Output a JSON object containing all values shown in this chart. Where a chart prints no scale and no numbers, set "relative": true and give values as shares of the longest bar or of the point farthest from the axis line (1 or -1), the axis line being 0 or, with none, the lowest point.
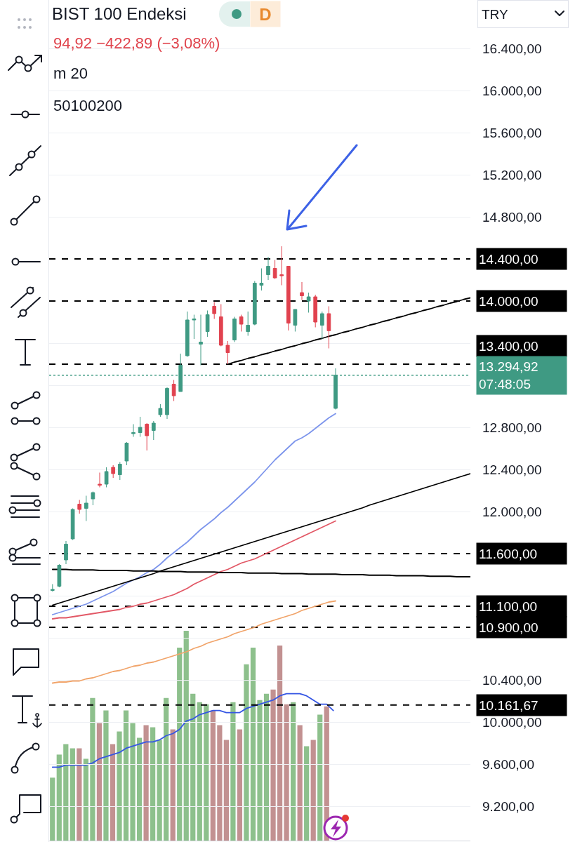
{
  "chart_data": [
    {
      "type": "candlestick",
      "title": "BIST 100 Endeksi",
      "subtitle": "94,92 −422,89 (−3,08%)",
      "annotations": [
        "D",
        "m 20",
        "50100200",
        "TRY"
      ],
      "categories": [
        null,
        null,
        null,
        null,
        null,
        null,
        null,
        null,
        null,
        null,
        null,
        null,
        null,
        null,
        null,
        null,
        null,
        null,
        null,
        null,
        null,
        null,
        null,
        null,
        null,
        null,
        null,
        null,
        null,
        null,
        null,
        null,
        null,
        null,
        null,
        null,
        null,
        null,
        null,
        null,
        null,
        null,
        null,
        null,
        null,
        null,
        null,
        null,
        null,
        null,
        null,
        null,
        null,
        null,
        null,
        null,
        null,
        null,
        null,
        null,
        null,
        null,
        null
      ],
      "ohlc": [
        [
          11250,
          11310,
          11240,
          11260
        ],
        [
          11290,
          11500,
          11280,
          11490
        ],
        [
          11540,
          11720,
          11500,
          11690
        ],
        [
          11740,
          12030,
          11730,
          12020
        ],
        [
          12070,
          12110,
          11980,
          12020
        ],
        [
          12030,
          12150,
          11910,
          12080
        ],
        [
          12120,
          12190,
          12060,
          12180
        ],
        [
          12260,
          12370,
          12230,
          12250
        ],
        [
          12260,
          12420,
          12230,
          12380
        ],
        [
          12420,
          12440,
          12320,
          12360
        ],
        [
          12350,
          12470,
          12300,
          12450
        ],
        [
          12480,
          12660,
          12440,
          12650
        ],
        [
          12740,
          12830,
          12710,
          12750
        ],
        [
          12750,
          12900,
          12710,
          12800
        ],
        [
          12830,
          12840,
          12580,
          12720
        ],
        [
          12770,
          12860,
          12680,
          12840
        ],
        [
          12920,
          13020,
          12900,
          12980
        ],
        [
          12920,
          13180,
          12880,
          13170
        ],
        [
          13210,
          13250,
          13050,
          13100
        ],
        [
          13140,
          13500,
          13140,
          13390
        ],
        [
          13480,
          13900,
          13470,
          13820
        ],
        [
          13820,
          13870,
          13640,
          13830
        ],
        [
          13590,
          13870,
          13390,
          13610
        ],
        [
          13710,
          13910,
          13660,
          13870
        ],
        [
          13950,
          13990,
          13830,
          13880
        ],
        [
          13850,
          13970,
          13570,
          13580
        ],
        [
          13580,
          13620,
          13400,
          13510
        ],
        [
          13630,
          13850,
          13610,
          13830
        ],
        [
          13850,
          13870,
          13710,
          13780
        ],
        [
          13710,
          13900,
          13670,
          13770
        ],
        [
          13780,
          14190,
          13770,
          14170
        ],
        [
          14150,
          14310,
          14100,
          14170
        ],
        [
          14250,
          14420,
          14200,
          14330
        ],
        [
          14310,
          14390,
          14210,
          14220
        ],
        [
          14250,
          14520,
          14150,
          14240
        ],
        [
          14330,
          14330,
          13720,
          13790
        ],
        [
          13770,
          13920,
          13710,
          13920
        ],
        [
          14080,
          14180,
          14010,
          14050
        ],
        [
          14000,
          14080,
          13890,
          14040
        ],
        [
          14040,
          14060,
          13750,
          13800
        ],
        [
          13770,
          13900,
          13640,
          13880
        ],
        [
          13880,
          13950,
          13550,
          13717.81
        ],
        [
          12980,
          13360,
          12970,
          13294.92
        ],
        null,
        null,
        null,
        null,
        null,
        null,
        null,
        null,
        null,
        null,
        null,
        null,
        null,
        null,
        null,
        null,
        null,
        null,
        null,
        null
      ],
      "colors": [
        "#3f9a83",
        "#3f9a83",
        "#3f9a83",
        "#3f9a83",
        "#e1424f",
        "#3f9a83",
        "#3f9a83",
        "#e1424f",
        "#3f9a83",
        "#e1424f",
        "#3f9a83",
        "#3f9a83",
        "#3f9a83",
        "#3f9a83",
        "#e1424f",
        "#3f9a83",
        "#3f9a83",
        "#3f9a83",
        "#e1424f",
        "#3f9a83",
        "#3f9a83",
        "#3f9a83",
        "#3f9a83",
        "#3f9a83",
        "#e1424f",
        "#e1424f",
        "#e1424f",
        "#3f9a83",
        "#e1424f",
        "#3f9a83",
        "#3f9a83",
        "#3f9a83",
        "#3f9a83",
        "#e1424f",
        "#e1424f",
        "#e1424f",
        "#3f9a83",
        "#e1424f",
        "#3f9a83",
        "#e1424f",
        "#3f9a83",
        "#e1424f",
        "#3f9a83",
        null,
        null,
        null,
        null,
        null,
        null,
        null,
        null,
        null,
        null,
        null,
        null,
        null,
        null,
        null,
        null,
        null,
        null,
        null,
        null
      ],
      "series": [
        {
          "type": "line",
          "color": "#7d95ec",
          "values": [
            11020,
            11040,
            11060,
            11080,
            11100,
            11120,
            11150,
            11180,
            11210,
            11240,
            11280,
            11320,
            11350,
            11380,
            11420,
            11450,
            11500,
            11560,
            11610,
            11660,
            11710,
            11770,
            11830,
            11880,
            11930,
            11990,
            12040,
            12100,
            12160,
            12220,
            12280,
            12350,
            12420,
            12490,
            12550,
            12610,
            12670,
            12700,
            12740,
            12790,
            12840,
            12890,
            12930,
            null,
            null,
            null,
            null,
            null,
            null,
            null,
            null,
            null,
            null,
            null,
            null,
            null,
            null,
            null,
            null,
            null,
            null,
            null,
            null
          ]
        },
        {
          "type": "line",
          "color": "#e25866",
          "values": [
            10980,
            10990,
            10990,
            11000,
            11010,
            11020,
            11030,
            11040,
            11050,
            11060,
            11070,
            11090,
            11100,
            11120,
            11130,
            11150,
            11170,
            11190,
            11210,
            11240,
            11270,
            11310,
            11340,
            11370,
            11400,
            11430,
            11450,
            11480,
            11510,
            11530,
            11550,
            11580,
            11610,
            11640,
            11670,
            11700,
            11730,
            11760,
            11790,
            11820,
            11850,
            11880,
            11910,
            null,
            null,
            null,
            null,
            null,
            null,
            null,
            null,
            null,
            null,
            null,
            null,
            null,
            null,
            null,
            null,
            null,
            null,
            null,
            null
          ]
        },
        {
          "type": "line",
          "color": "#f1a46a",
          "values": [
            10370,
            10380,
            10380,
            10390,
            10390,
            10410,
            10420,
            10440,
            10460,
            10480,
            10490,
            10510,
            10530,
            10540,
            10560,
            10570,
            10590,
            10610,
            10630,
            10650,
            10670,
            10700,
            10720,
            10750,
            10770,
            10790,
            10810,
            10840,
            10860,
            10880,
            10900,
            10930,
            10950,
            10970,
            10990,
            11010,
            11030,
            11060,
            11080,
            11100,
            11120,
            11140,
            11150,
            null,
            null,
            null,
            null,
            null,
            null,
            null,
            null,
            null,
            null,
            null,
            null,
            null,
            null,
            null,
            null,
            null,
            null,
            null,
            null
          ]
        },
        {
          "type": "line",
          "color": "#000000",
          "values": [
            null,
            null,
            null,
            null,
            null,
            null,
            null,
            null,
            null,
            null,
            null,
            null,
            null,
            null,
            null,
            null,
            null,
            null,
            null,
            null,
            null,
            null,
            null,
            null,
            null,
            null,
            13400,
            13420,
            13435,
            13455,
            13470,
            13490,
            13505,
            13525,
            13540,
            13560,
            13575,
            13595,
            13610,
            13630,
            13645,
            13665,
            13680,
            13700,
            13715,
            13735,
            13750,
            13770,
            13785,
            13805,
            13820,
            13840,
            13855,
            13875,
            13890,
            13910,
            13925,
            13945,
            13960,
            13980,
            13995,
            14015,
            14030
          ]
        },
        {
          "type": "line",
          "color": "#000000",
          "values": [
            11110,
            11130,
            11150,
            11170,
            11190,
            11210,
            11230,
            11250,
            11270,
            11290,
            11310,
            11330,
            11350,
            11370,
            11390,
            11410,
            11435,
            11455,
            11475,
            11495,
            11515,
            11535,
            11555,
            11575,
            11595,
            11615,
            11635,
            11655,
            11675,
            11695,
            11715,
            11735,
            11755,
            11775,
            11795,
            11815,
            11835,
            11855,
            11875,
            11895,
            11915,
            11935,
            11955,
            11975,
            11995,
            12015,
            12035,
            12060,
            12080,
            12100,
            12120,
            12140,
            12160,
            12180,
            12200,
            12220,
            12240,
            12260,
            12280,
            12300,
            12320,
            12340,
            12360
          ]
        },
        {
          "type": "line",
          "color": "#000000",
          "values": [
            11450,
            11450,
            11450,
            11445,
            11445,
            11445,
            11445,
            11440,
            11440,
            11440,
            11440,
            11440,
            11435,
            11435,
            11435,
            11435,
            11430,
            11430,
            11430,
            11430,
            11425,
            11425,
            11425,
            11425,
            11425,
            11420,
            11420,
            11420,
            11420,
            11415,
            11415,
            11415,
            11415,
            11415,
            11410,
            11410,
            11410,
            11410,
            11405,
            11405,
            11405,
            11405,
            11405,
            11400,
            11400,
            11400,
            11400,
            11395,
            11395,
            11395,
            11395,
            11390,
            11390,
            11390,
            11390,
            11390,
            11385,
            11385,
            11385,
            11385,
            11380,
            11380,
            11380
          ]
        }
      ],
      "ylim": [
        8860,
        16860
      ],
      "yticks": [
        {
          "value": 9200,
          "label": "9.200,00"
        },
        {
          "value": 9600,
          "label": "9.600,00"
        },
        {
          "value": 10000,
          "label": "10.000,00"
        },
        {
          "value": 10400,
          "label": "10.400,00"
        },
        {
          "value": 10800,
          "label": null
        },
        {
          "value": 11200,
          "label": null
        },
        {
          "value": 12000,
          "label": "12.000,00"
        },
        {
          "value": 12400,
          "label": "12.400,00"
        },
        {
          "value": 12800,
          "label": "12.800,00"
        },
        {
          "value": 13200,
          "label": null
        },
        {
          "value": 13600,
          "label": null
        },
        {
          "value": 14800,
          "label": "14.800,00"
        },
        {
          "value": 15200,
          "label": "15.200,00"
        },
        {
          "value": 15600,
          "label": "15.600,00"
        },
        {
          "value": 16000,
          "label": "16.000,00"
        },
        {
          "value": 16400,
          "label": "16.400,00"
        }
      ],
      "ref_lines": [
        {
          "axis": "y",
          "value": 14400,
          "label": "14.400,00",
          "color": "#000000",
          "line_style": "dashed"
        },
        {
          "axis": "y",
          "value": 14000,
          "label": "14.000,00",
          "color": "#000000",
          "line_style": "dashed"
        },
        {
          "axis": "y",
          "value": 13400,
          "label": "13.400,00",
          "color": "#000000",
          "line_style": "dashed"
        },
        {
          "axis": "y",
          "value": 13294.92,
          "label": "13.294,92\n07:48:05",
          "color": "#3f9a83",
          "line_style": "dotted"
        },
        {
          "axis": "y",
          "value": 11600,
          "label": "11.600,00",
          "color": "#000000",
          "line_style": "dashed"
        },
        {
          "axis": "y",
          "value": 11100,
          "label": "11.100,00",
          "color": "#000000",
          "line_style": "dashed"
        },
        {
          "axis": "y",
          "value": 10900,
          "label": "10.900,00",
          "color": "#000000",
          "line_style": "dashed"
        },
        {
          "axis": "y",
          "value": 10161.67,
          "label": "10.161,67",
          "color": "#000000",
          "line_style": "dashed"
        }
      ],
      "grid": "y",
      "tick_labels": "y"
    },
    {
      "type": "bar",
      "relative": true,
      "categories": [
        null,
        null,
        null,
        null,
        null,
        null,
        null,
        null,
        null,
        null,
        null,
        null,
        null,
        null,
        null,
        null,
        null,
        null,
        null,
        null,
        null,
        null,
        null,
        null,
        null,
        null,
        null,
        null,
        null,
        null,
        null,
        null,
        null,
        null,
        null,
        null,
        null,
        null,
        null,
        null,
        null,
        null,
        null,
        null,
        null,
        null,
        null,
        null,
        null,
        null,
        null,
        null,
        null,
        null,
        null,
        null,
        null,
        null,
        null,
        null,
        null,
        null,
        null
      ],
      "series": [
        {
          "type": "bar",
          "colors": [
            "#8dc08c",
            "#8dc08c",
            "#8dc08c",
            "#8dc08c",
            "#c29191",
            "#8dc08c",
            "#8dc08c",
            "#c29191",
            "#8dc08c",
            "#c29191",
            "#8dc08c",
            "#8dc08c",
            "#8dc08c",
            "#8dc08c",
            "#c29191",
            "#8dc08c",
            "#8dc08c",
            "#8dc08c",
            "#c29191",
            "#8dc08c",
            "#8dc08c",
            "#8dc08c",
            "#8dc08c",
            "#8dc08c",
            "#c29191",
            "#c29191",
            "#c29191",
            "#8dc08c",
            "#c29191",
            "#8dc08c",
            "#8dc08c",
            "#8dc08c",
            "#8dc08c",
            "#c29191",
            "#c29191",
            "#c29191",
            "#8dc08c",
            "#c29191",
            "#8dc08c",
            "#c29191",
            "#8dc08c",
            "#c29191",
            null,
            null,
            null,
            null,
            null,
            null,
            null,
            null,
            null,
            null,
            null,
            null,
            null,
            null,
            null,
            null,
            null,
            null,
            null,
            null,
            null
          ],
          "values": [
            0.3,
            0.41,
            0.46,
            0.44,
            0.44,
            0.39,
            0.68,
            0.56,
            0.62,
            0.46,
            0.52,
            0.62,
            0.56,
            0.49,
            0.55,
            0.54,
            0.48,
            0.68,
            0.53,
            0.92,
            1,
            0.7,
            0.66,
            0.65,
            0.62,
            0.55,
            0.48,
            0.66,
            0.53,
            0.84,
            0.92,
            0.67,
            0.7,
            0.72,
            0.93,
            0.65,
            0.66,
            0.55,
            0.45,
            0.48,
            0.6,
            0.64,
            null,
            null,
            null,
            null,
            null,
            null,
            null,
            null,
            null,
            null,
            null,
            null,
            null,
            null,
            null,
            null,
            null,
            null,
            null,
            null,
            null
          ]
        },
        {
          "type": "line",
          "color": "#3556e4",
          "values": [
            0.35,
            0.35,
            0.36,
            0.36,
            0.36,
            0.36,
            0.37,
            0.39,
            0.4,
            0.41,
            0.42,
            0.44,
            0.45,
            0.46,
            0.47,
            0.47,
            0.48,
            0.5,
            0.51,
            0.53,
            0.57,
            0.58,
            0.6,
            0.61,
            0.62,
            0.62,
            0.61,
            0.61,
            0.61,
            0.63,
            0.64,
            0.65,
            0.66,
            0.67,
            0.69,
            0.7,
            0.7,
            0.7,
            0.69,
            0.67,
            0.65,
            0.65,
            0.62,
            null,
            null,
            null,
            null,
            null,
            null,
            null,
            null,
            null,
            null,
            null,
            null,
            null,
            null,
            null,
            null,
            null,
            null,
            null,
            null
          ]
        }
      ]
    }
  ]
}
